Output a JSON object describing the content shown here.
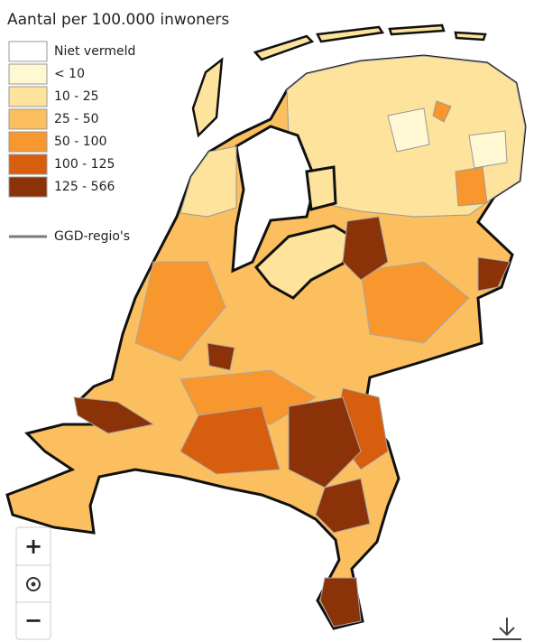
{
  "title": "Aantal per 100.000 inwoners",
  "legend": [
    {
      "label": "Niet vermeld",
      "color": "#ffffff"
    },
    {
      "label": "< 10",
      "color": "#fff8d2"
    },
    {
      "label": "10 - 25",
      "color": "#fde39b"
    },
    {
      "label": "25 - 50",
      "color": "#fbbf5f"
    },
    {
      "label": "50 - 100",
      "color": "#f7972d"
    },
    {
      "label": "100 - 125",
      "color": "#d65e0e"
    },
    {
      "label": "125 - 566",
      "color": "#8b3208"
    }
  ],
  "boundary_legend": {
    "label": "GGD-regio's",
    "color": "#7a7a7a"
  },
  "controls": {
    "zoom_in": "+",
    "zoom_out": "−"
  }
}
